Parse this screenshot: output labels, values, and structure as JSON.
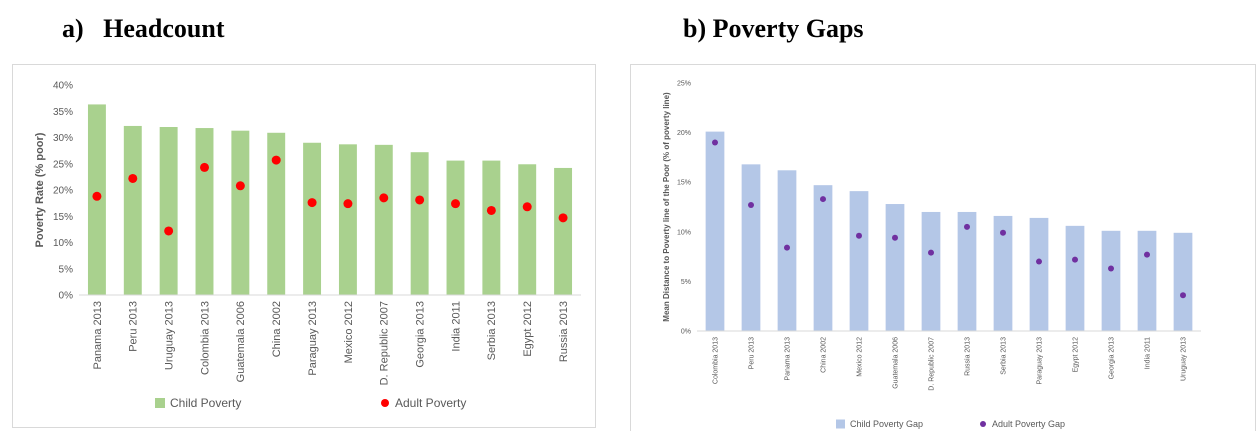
{
  "panels": {
    "a_title": "a)   Headcount",
    "b_title": "b) Poverty Gaps"
  },
  "colors": {
    "child_headcount": "#a9d18e",
    "adult_headcount": "#ff0000",
    "child_gap": "#b4c7e7",
    "adult_gap": "#7030a0",
    "axis": "#d9d9d9",
    "text": "#595959"
  },
  "chart_data": [
    {
      "type": "bar",
      "title": "Headcount",
      "categories": [
        "Panama 2013",
        "Peru 2013",
        "Uruguay 2013",
        "Colombia 2013",
        "Guatemala 2006",
        "China 2002",
        "Paraguay 2013",
        "Mexico 2012",
        "D. Republic 2007",
        "Georgia 2013",
        "India 2011",
        "Serbia 2013",
        "Egypt 2012",
        "Russia 2013"
      ],
      "series": [
        {
          "name": "Child Poverty",
          "kind": "bar",
          "values": [
            36.3,
            32.2,
            32.0,
            31.8,
            31.3,
            30.9,
            29.0,
            28.7,
            28.6,
            27.2,
            25.6,
            25.6,
            24.9,
            24.2
          ]
        },
        {
          "name": "Adult Poverty",
          "kind": "point",
          "values": [
            18.8,
            22.2,
            12.2,
            24.3,
            20.8,
            25.7,
            17.6,
            17.4,
            18.5,
            18.1,
            17.4,
            16.1,
            16.8,
            14.7
          ]
        }
      ],
      "xlabel": "",
      "ylabel": "Poverty Rate (% poor)",
      "ylim": [
        0,
        40
      ],
      "yticks": [
        0,
        5,
        10,
        15,
        20,
        25,
        30,
        35,
        40
      ],
      "ytick_labels": [
        "0%",
        "5%",
        "10%",
        "15%",
        "20%",
        "25%",
        "30%",
        "35%",
        "40%"
      ],
      "legend": "bottom",
      "grid": false
    },
    {
      "type": "bar",
      "title": "Poverty Gaps",
      "categories": [
        "Colombia 2013",
        "Peru 2013",
        "Panama 2013",
        "China 2002",
        "Mexico 2012",
        "Guatemala 2006",
        "D. Republic 2007",
        "Russia 2013",
        "Serbia 2013",
        "Paraguay 2013",
        "Egypt 2012",
        "Georgia 2013",
        "India 2011",
        "Uruguay 2013"
      ],
      "series": [
        {
          "name": "Child Poverty Gap",
          "kind": "bar",
          "values": [
            20.1,
            16.8,
            16.2,
            14.7,
            14.1,
            12.8,
            12.0,
            12.0,
            11.6,
            11.4,
            10.6,
            10.1,
            10.1,
            9.9
          ]
        },
        {
          "name": "Adult Poverty Gap",
          "kind": "point",
          "values": [
            19.0,
            12.7,
            8.4,
            13.3,
            9.6,
            9.4,
            7.9,
            10.5,
            9.9,
            7.0,
            7.2,
            6.3,
            7.7,
            3.6
          ]
        }
      ],
      "xlabel": "",
      "ylabel": "Mean Distance to Poverty line of the Poor (% of poverty line)",
      "ylim": [
        0,
        25
      ],
      "yticks": [
        0,
        5,
        10,
        15,
        20,
        25
      ],
      "ytick_labels": [
        "0%",
        "5%",
        "10%",
        "15%",
        "20%",
        "25%"
      ],
      "legend": "bottom",
      "grid": false
    }
  ]
}
